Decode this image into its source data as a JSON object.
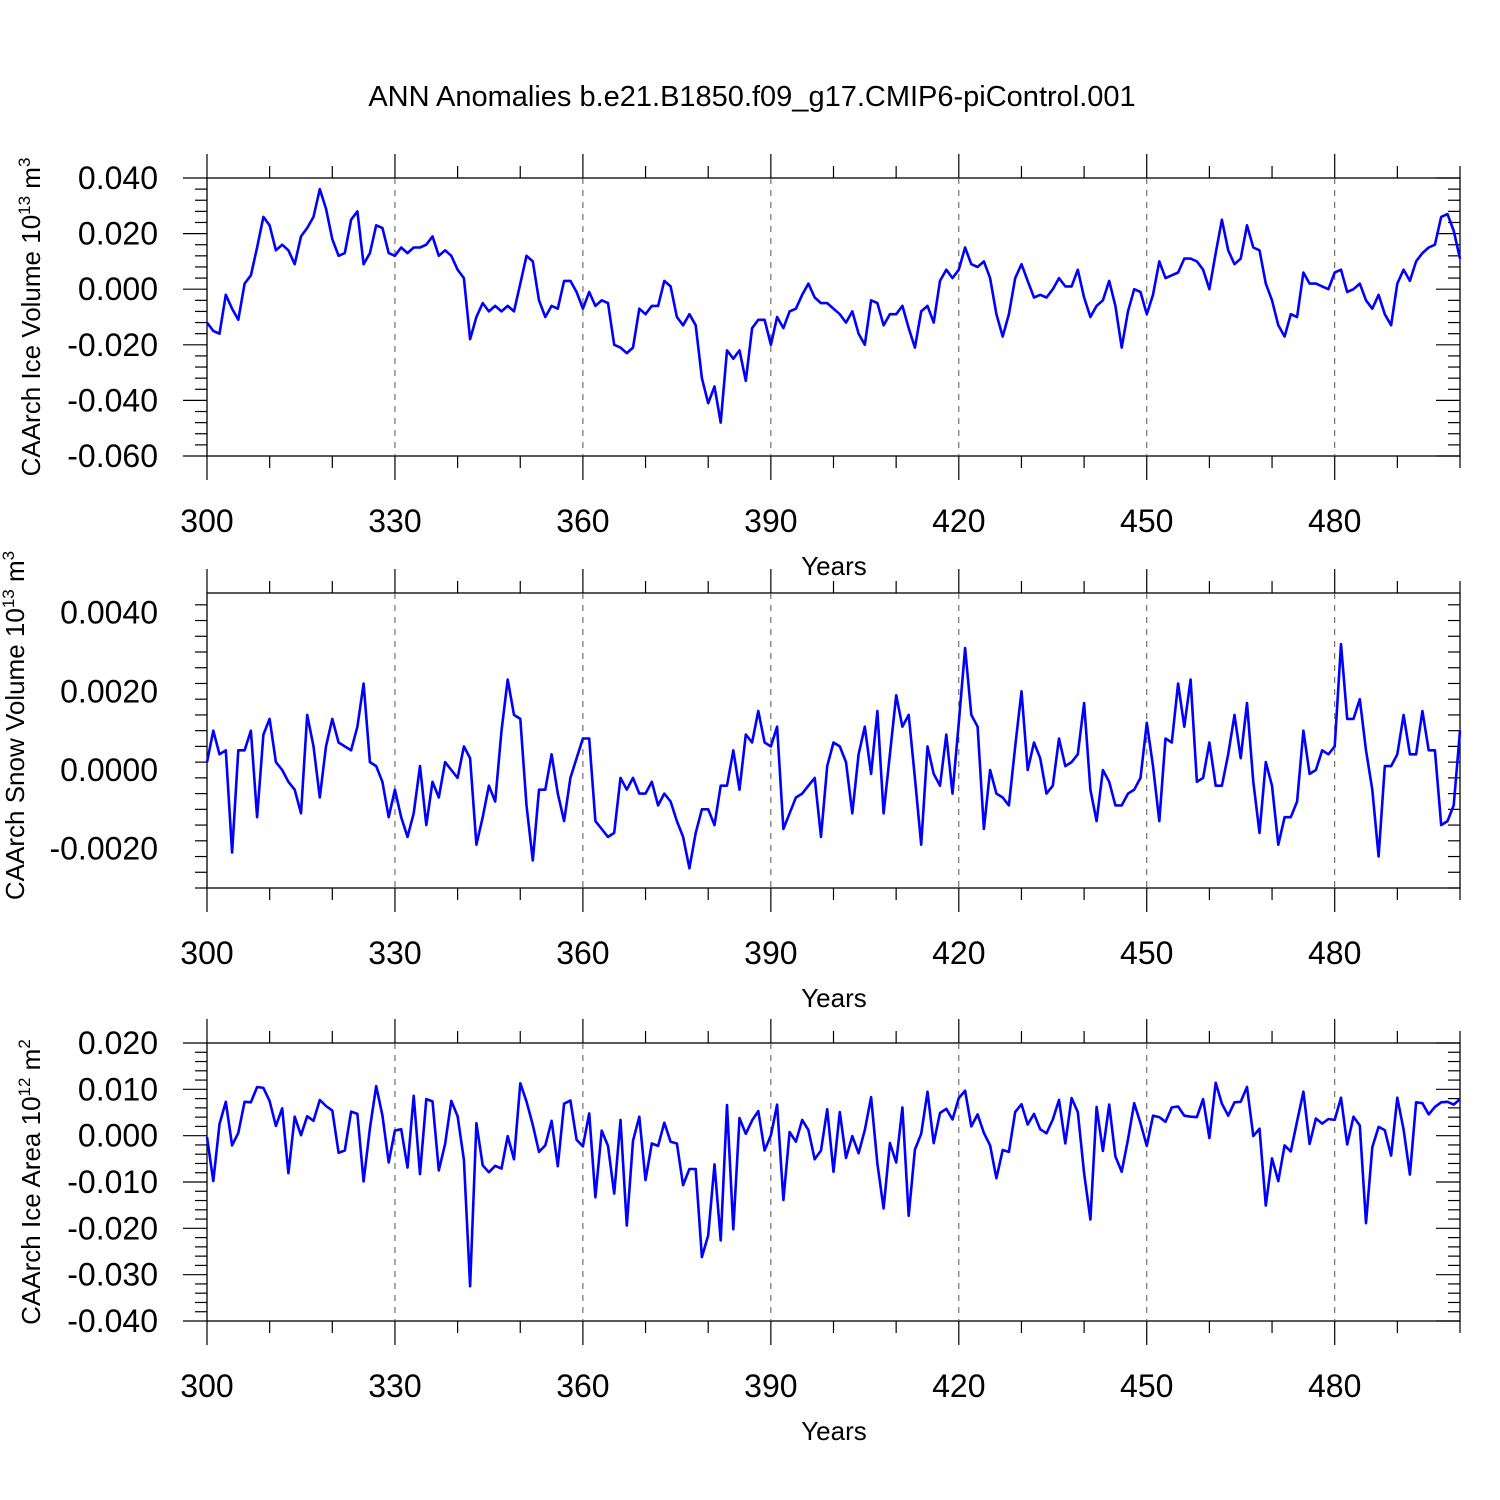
{
  "title": "ANN Anomalies b.e21.B1850.f09_g17.CMIP6-piControl.001",
  "colors": {
    "series": "#0000ff",
    "axes": "#000000",
    "grid": "#555555"
  },
  "chart_data": [
    {
      "type": "line",
      "name": "ice-volume",
      "title": "",
      "ylabel": "CAArch Ice Volume",
      "ylabel_unit_base": "10",
      "ylabel_unit_exp": "13",
      "ylabel_unit_tail": " m",
      "ylabel_unit_tail_exp": "3",
      "xlabel": "Years",
      "xlim": [
        300,
        500
      ],
      "ylim": [
        -0.06,
        0.04
      ],
      "x_ticks": [
        300,
        330,
        360,
        390,
        420,
        450,
        480
      ],
      "x_tick_labels": [
        "300",
        "330",
        "360",
        "390",
        "420",
        "450",
        "480"
      ],
      "y_ticks": [
        -0.06,
        -0.04,
        -0.02,
        0.0,
        0.02,
        0.04
      ],
      "y_tick_labels": [
        "-0.060",
        "-0.040",
        "-0.020",
        "0.000",
        "0.020",
        "0.040"
      ],
      "grid_x": [
        330,
        360,
        390,
        420,
        450,
        480
      ],
      "x_start": 300,
      "values": [
        -0.012,
        -0.015,
        -0.016,
        -0.002,
        -0.007,
        -0.011,
        0.002,
        0.005,
        0.015,
        0.026,
        0.023,
        0.014,
        0.016,
        0.014,
        0.009,
        0.019,
        0.022,
        0.026,
        0.036,
        0.029,
        0.018,
        0.012,
        0.013,
        0.025,
        0.028,
        0.009,
        0.013,
        0.023,
        0.022,
        0.013,
        0.012,
        0.015,
        0.013,
        0.015,
        0.015,
        0.016,
        0.019,
        0.012,
        0.014,
        0.012,
        0.007,
        0.004,
        -0.018,
        -0.01,
        -0.005,
        -0.008,
        -0.006,
        -0.008,
        -0.006,
        -0.008,
        0.002,
        0.012,
        0.01,
        -0.004,
        -0.01,
        -0.006,
        -0.007,
        0.003,
        0.003,
        -0.001,
        -0.007,
        -0.001,
        -0.006,
        -0.004,
        -0.005,
        -0.02,
        -0.021,
        -0.023,
        -0.021,
        -0.007,
        -0.009,
        -0.006,
        -0.006,
        0.003,
        0.001,
        -0.01,
        -0.013,
        -0.009,
        -0.013,
        -0.032,
        -0.041,
        -0.035,
        -0.048,
        -0.022,
        -0.025,
        -0.022,
        -0.033,
        -0.014,
        -0.011,
        -0.011,
        -0.02,
        -0.01,
        -0.014,
        -0.008,
        -0.007,
        -0.002,
        0.002,
        -0.003,
        -0.005,
        -0.005,
        -0.007,
        -0.009,
        -0.012,
        -0.008,
        -0.016,
        -0.02,
        -0.004,
        -0.005,
        -0.013,
        -0.009,
        -0.009,
        -0.006,
        -0.014,
        -0.021,
        -0.008,
        -0.006,
        -0.012,
        0.003,
        0.007,
        0.004,
        0.007,
        0.015,
        0.009,
        0.008,
        0.01,
        0.004,
        -0.009,
        -0.017,
        -0.009,
        0.004,
        0.009,
        0.003,
        -0.003,
        -0.002,
        -0.003,
        0.0,
        0.004,
        0.001,
        0.001,
        0.007,
        -0.003,
        -0.01,
        -0.006,
        -0.004,
        0.003,
        -0.006,
        -0.021,
        -0.008,
        0.0,
        -0.001,
        -0.009,
        -0.002,
        0.01,
        0.004,
        0.005,
        0.006,
        0.011,
        0.011,
        0.01,
        0.007,
        0.0,
        0.013,
        0.025,
        0.014,
        0.009,
        0.011,
        0.023,
        0.015,
        0.014,
        0.002,
        -0.004,
        -0.013,
        -0.017,
        -0.009,
        -0.01,
        0.006,
        0.002,
        0.002,
        0.001,
        0.0,
        0.006,
        0.007,
        -0.001,
        0.0,
        0.002,
        -0.004,
        -0.007,
        -0.002,
        -0.009,
        -0.013,
        0.002,
        0.007,
        0.003,
        0.01,
        0.013,
        0.015,
        0.016,
        0.026,
        0.027,
        0.021,
        0.011
      ]
    },
    {
      "type": "line",
      "name": "snow-volume",
      "title": "",
      "ylabel": "CAArch Snow Volume",
      "ylabel_unit_base": "10",
      "ylabel_unit_exp": "13",
      "ylabel_unit_tail": " m",
      "ylabel_unit_tail_exp": "3",
      "xlabel": "Years",
      "xlim": [
        300,
        500
      ],
      "ylim": [
        -0.003,
        0.0045
      ],
      "x_ticks": [
        300,
        330,
        360,
        390,
        420,
        450,
        480
      ],
      "x_tick_labels": [
        "300",
        "330",
        "360",
        "390",
        "420",
        "450",
        "480"
      ],
      "y_ticks": [
        -0.002,
        0.0,
        0.002,
        0.004
      ],
      "y_tick_labels": [
        "-0.0020",
        "0.0000",
        "0.0020",
        "0.0040"
      ],
      "grid_x": [
        330,
        360,
        390,
        420,
        450,
        480
      ],
      "x_start": 300,
      "values": [
        0.0002,
        0.001,
        0.0004,
        0.0005,
        -0.0021,
        0.0005,
        0.0005,
        0.001,
        -0.0012,
        0.0009,
        0.0013,
        0.0002,
        0.0,
        -0.0003,
        -0.0005,
        -0.0011,
        0.0014,
        0.0006,
        -0.0007,
        0.0006,
        0.0013,
        0.0007,
        0.0006,
        0.0005,
        0.0011,
        0.0022,
        0.0002,
        0.0001,
        -0.0003,
        -0.0012,
        -0.0005,
        -0.0012,
        -0.0017,
        -0.0011,
        0.0001,
        -0.0014,
        -0.0003,
        -0.0007,
        0.0002,
        0.0,
        -0.0002,
        0.0006,
        0.0003,
        -0.0019,
        -0.0012,
        -0.0004,
        -0.0008,
        0.001,
        0.0023,
        0.0014,
        0.0013,
        -0.0009,
        -0.0023,
        -0.0005,
        -0.0005,
        0.0004,
        -0.0006,
        -0.0013,
        -0.0002,
        0.0003,
        0.0008,
        0.0008,
        -0.0013,
        -0.0015,
        -0.0017,
        -0.0016,
        -0.0002,
        -0.0005,
        -0.0002,
        -0.0006,
        -0.0006,
        -0.0003,
        -0.0009,
        -0.0006,
        -0.0008,
        -0.0013,
        -0.0017,
        -0.0025,
        -0.0016,
        -0.001,
        -0.001,
        -0.0014,
        -0.0004,
        -0.0004,
        0.0005,
        -0.0005,
        0.0009,
        0.0007,
        0.0015,
        0.0007,
        0.0006,
        0.0011,
        -0.0015,
        -0.0011,
        -0.0007,
        -0.0006,
        -0.0004,
        -0.0002,
        -0.0017,
        0.0001,
        0.0007,
        0.0006,
        0.0002,
        -0.0011,
        0.0004,
        0.0011,
        -0.0001,
        0.0015,
        -0.0011,
        0.0004,
        0.0019,
        0.0011,
        0.0014,
        -0.0002,
        -0.0019,
        0.0006,
        -0.0001,
        -0.0004,
        0.0009,
        -0.0006,
        0.0012,
        0.0031,
        0.0014,
        0.0011,
        -0.0015,
        0.0,
        -0.0006,
        -0.0007,
        -0.0009,
        0.0006,
        0.002,
        0.0,
        0.0007,
        0.0003,
        -0.0006,
        -0.0004,
        0.0008,
        0.0001,
        0.0002,
        0.0004,
        0.0017,
        -0.0005,
        -0.0013,
        0.0,
        -0.0003,
        -0.0009,
        -0.0009,
        -0.0006,
        -0.0005,
        -0.0002,
        0.0012,
        0.0001,
        -0.0013,
        0.0008,
        0.0007,
        0.0022,
        0.0011,
        0.0023,
        -0.0003,
        -0.0002,
        0.0007,
        -0.0004,
        -0.0004,
        0.0004,
        0.0014,
        0.0003,
        0.0017,
        -0.0003,
        -0.0016,
        0.0002,
        -0.0004,
        -0.0019,
        -0.0012,
        -0.0012,
        -0.0008,
        0.001,
        -0.0001,
        0.0,
        0.0005,
        0.0004,
        0.0006,
        0.0032,
        0.0013,
        0.0013,
        0.0018,
        0.0005,
        -0.0005,
        -0.0022,
        0.0001,
        0.0001,
        0.0004,
        0.0014,
        0.0004,
        0.0004,
        0.0015,
        0.0005,
        0.0005,
        -0.0014,
        -0.0013,
        -0.0009,
        0.001
      ]
    },
    {
      "type": "line",
      "name": "ice-area",
      "title": "",
      "ylabel": "CAArch Ice Area",
      "ylabel_unit_base": "10",
      "ylabel_unit_exp": "12",
      "ylabel_unit_tail": " m",
      "ylabel_unit_tail_exp": "2",
      "xlabel": "Years",
      "xlim": [
        300,
        500
      ],
      "ylim": [
        -0.04,
        0.02
      ],
      "x_ticks": [
        300,
        330,
        360,
        390,
        420,
        450,
        480
      ],
      "x_tick_labels": [
        "300",
        "330",
        "360",
        "390",
        "420",
        "450",
        "480"
      ],
      "y_ticks": [
        -0.04,
        -0.03,
        -0.02,
        -0.01,
        0.0,
        0.01,
        0.02
      ],
      "y_tick_labels": [
        "-0.040",
        "-0.030",
        "-0.020",
        "-0.010",
        "0.000",
        "0.010",
        "0.020"
      ],
      "grid_x": [
        330,
        360,
        390,
        420,
        450,
        480
      ],
      "x_start": 300,
      "values": [
        -0.0003,
        -0.0098,
        0.0025,
        0.0073,
        -0.0021,
        0.0006,
        0.0073,
        0.0072,
        0.0105,
        0.0103,
        0.0075,
        0.0021,
        0.0059,
        -0.0081,
        0.0041,
        0.0001,
        0.0042,
        0.0032,
        0.0077,
        0.0064,
        0.0054,
        -0.0037,
        -0.0032,
        0.0052,
        0.0047,
        -0.0099,
        0.0016,
        0.0107,
        0.0044,
        -0.0058,
        0.0011,
        0.0014,
        -0.0069,
        0.0086,
        -0.0083,
        0.0079,
        0.0074,
        -0.0075,
        -0.0018,
        0.0075,
        0.0042,
        -0.0052,
        -0.0325,
        0.0027,
        -0.0064,
        -0.0079,
        -0.0065,
        -0.0071,
        -0.0001,
        -0.0051,
        0.0113,
        0.0074,
        0.0023,
        -0.0035,
        -0.0021,
        0.0032,
        -0.0066,
        0.0069,
        0.0076,
        -0.0009,
        -0.0023,
        0.0048,
        -0.0133,
        0.0011,
        -0.0022,
        -0.0125,
        0.0034,
        -0.0194,
        -0.0011,
        0.0041,
        -0.0096,
        -0.0017,
        -0.0022,
        0.0028,
        -0.0013,
        -0.0017,
        -0.0107,
        -0.0072,
        -0.0072,
        -0.0262,
        -0.0215,
        -0.0062,
        -0.0226,
        0.0066,
        -0.0202,
        0.0038,
        0.0004,
        0.0033,
        0.0053,
        -0.0032,
        0.0001,
        0.0067,
        -0.0139,
        0.0008,
        -0.0013,
        0.0034,
        0.0012,
        -0.0051,
        -0.0032,
        0.0057,
        -0.0078,
        0.0051,
        -0.0048,
        -0.0001,
        -0.0038,
        0.0012,
        0.0083,
        -0.0061,
        -0.0157,
        -0.0016,
        -0.0058,
        0.0061,
        -0.0173,
        -0.003,
        0.0004,
        0.0095,
        -0.0016,
        0.0049,
        0.0058,
        0.0035,
        0.0081,
        0.0097,
        0.002,
        0.0046,
        0.0006,
        -0.0021,
        -0.0092,
        -0.0031,
        -0.0035,
        0.0051,
        0.0068,
        0.0024,
        0.0047,
        0.0014,
        0.0005,
        0.0035,
        0.0077,
        -0.0017,
        0.0081,
        0.0051,
        -0.0081,
        -0.0181,
        0.0062,
        -0.0033,
        0.0067,
        -0.0045,
        -0.0078,
        -0.0008,
        0.007,
        0.0027,
        -0.0022,
        0.0043,
        0.004,
        0.003,
        0.0061,
        0.0063,
        0.0043,
        0.0041,
        0.004,
        0.0079,
        -0.0005,
        0.0114,
        0.0069,
        0.0043,
        0.0072,
        0.0073,
        0.0105,
        -0.0001,
        0.0015,
        -0.0151,
        -0.0049,
        -0.0098,
        -0.0021,
        -0.0034,
        0.0031,
        0.0095,
        -0.0018,
        0.0037,
        0.0026,
        0.0036,
        0.0034,
        0.0082,
        -0.0019,
        0.0041,
        0.0022,
        -0.0189,
        -0.0025,
        0.0019,
        0.0012,
        -0.0043,
        0.0082,
        0.0013,
        -0.0084,
        0.0072,
        0.007,
        0.0046,
        0.0062,
        0.0072,
        0.0073,
        0.0067,
        0.0079
      ]
    }
  ]
}
